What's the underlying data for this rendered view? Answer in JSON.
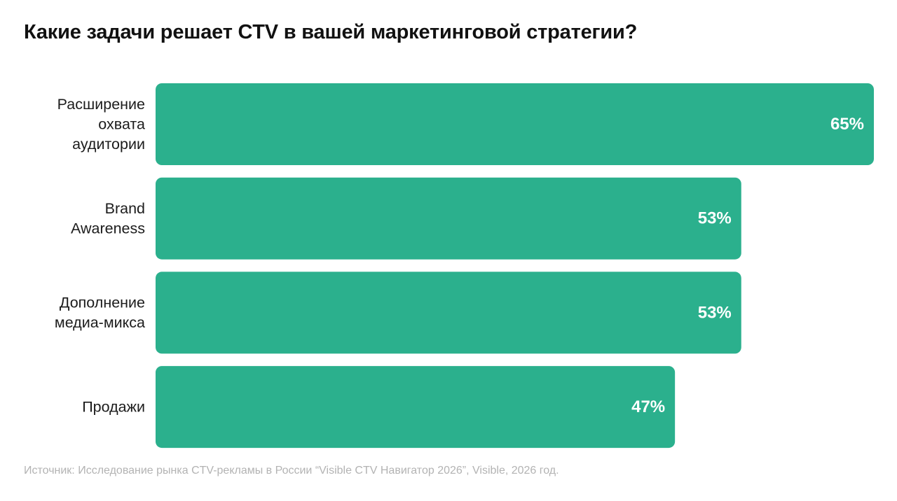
{
  "colors": {
    "bar": "#2bb08d",
    "value_text": "#ffffff",
    "title_text": "#111111",
    "label_text": "#1c1c1c",
    "source_text": "#b3b3b3"
  },
  "chart_data": {
    "type": "bar",
    "orientation": "horizontal",
    "title": "Какие задачи решает CTV в вашей маркетинговой стратегии?",
    "categories": [
      [
        "Расширение",
        "охвата",
        "аудитории"
      ],
      [
        "Brand",
        "Awareness"
      ],
      [
        "Дополнение",
        "медиа-микса"
      ],
      [
        "Продажи"
      ]
    ],
    "values": [
      65,
      53,
      53,
      47
    ],
    "value_labels": [
      "65%",
      "53%",
      "53%",
      "47%"
    ],
    "unit": "%",
    "xlim": [
      0,
      65
    ],
    "grid": false,
    "legend": "none"
  },
  "source": "Источник: Исследование рынка CTV-рекламы в России “Visible CTV Навигатор 2026”, Visible, 2026 год."
}
